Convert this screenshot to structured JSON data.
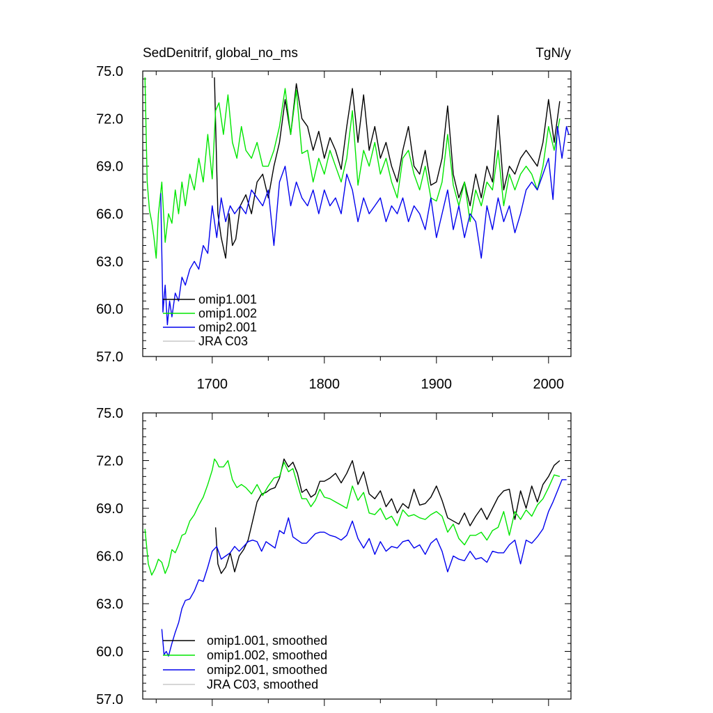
{
  "chart_data": [
    {
      "type": "line",
      "title_left": "SedDenitrif, global_no_ms",
      "title_right": "TgN/y",
      "xlim": [
        1638,
        2020
      ],
      "ylim": [
        57.0,
        75.0
      ],
      "xticks": [
        1700,
        1800,
        1900,
        2000
      ],
      "yticks": [
        "57.0",
        "60.0",
        "63.0",
        "66.0",
        "69.0",
        "72.0",
        "75.0"
      ],
      "show_xtick_labels": true,
      "legend_placement": "bottom-left",
      "series": [
        {
          "name": "omip1.001",
          "color": "#000000",
          "x": [
            1702,
            1705,
            1708,
            1712,
            1715,
            1718,
            1721,
            1725,
            1730,
            1735,
            1740,
            1745,
            1750,
            1755,
            1760,
            1765,
            1770,
            1775,
            1780,
            1785,
            1790,
            1795,
            1800,
            1805,
            1810,
            1815,
            1820,
            1825,
            1830,
            1835,
            1840,
            1845,
            1850,
            1855,
            1860,
            1865,
            1870,
            1875,
            1880,
            1885,
            1890,
            1895,
            1900,
            1905,
            1910,
            1915,
            1920,
            1925,
            1930,
            1935,
            1940,
            1945,
            1950,
            1955,
            1960,
            1965,
            1970,
            1975,
            1980,
            1985,
            1990,
            1995,
            2000,
            2005,
            2010
          ],
          "y": [
            74.6,
            66.0,
            64.5,
            63.2,
            66.0,
            64.0,
            64.4,
            66.5,
            67.2,
            66.0,
            68.0,
            68.5,
            67.0,
            69.0,
            70.5,
            73.2,
            71.0,
            74.2,
            72.0,
            71.5,
            70.0,
            71.2,
            69.5,
            70.8,
            70.0,
            68.8,
            71.5,
            73.9,
            70.5,
            73.5,
            70.0,
            71.5,
            69.5,
            70.5,
            69.0,
            68.0,
            70.0,
            71.5,
            69.0,
            68.5,
            70.0,
            67.8,
            68.0,
            69.5,
            72.8,
            68.5,
            67.0,
            68.0,
            66.5,
            68.5,
            67.0,
            69.0,
            68.0,
            72.2,
            67.5,
            69.0,
            68.5,
            69.5,
            70.0,
            69.5,
            69.0,
            70.5,
            73.2,
            70.5,
            73.1
          ]
        },
        {
          "name": "omip1.002",
          "color": "#00e600",
          "x": [
            1640,
            1642,
            1644,
            1646,
            1648,
            1650,
            1652,
            1655,
            1658,
            1661,
            1664,
            1667,
            1670,
            1673,
            1676,
            1680,
            1684,
            1688,
            1692,
            1696,
            1700,
            1703,
            1706,
            1710,
            1714,
            1718,
            1722,
            1726,
            1730,
            1735,
            1740,
            1745,
            1750,
            1755,
            1760,
            1765,
            1770,
            1775,
            1780,
            1785,
            1790,
            1795,
            1800,
            1805,
            1810,
            1815,
            1820,
            1825,
            1830,
            1835,
            1840,
            1845,
            1850,
            1855,
            1860,
            1865,
            1870,
            1875,
            1880,
            1885,
            1890,
            1895,
            1900,
            1905,
            1910,
            1915,
            1920,
            1925,
            1930,
            1935,
            1940,
            1945,
            1950,
            1955,
            1960,
            1965,
            1970,
            1975,
            1980,
            1985,
            1990,
            1995,
            2000,
            2005,
            2010
          ],
          "y": [
            74.6,
            68.0,
            66.2,
            65.5,
            64.5,
            63.2,
            66.0,
            68.0,
            64.2,
            66.0,
            65.4,
            67.5,
            66.0,
            68.0,
            66.5,
            68.5,
            67.5,
            69.5,
            68.0,
            71.0,
            68.2,
            72.5,
            73.0,
            71.0,
            73.5,
            70.5,
            69.5,
            71.5,
            70.0,
            69.5,
            70.5,
            69.0,
            69.0,
            70.0,
            71.5,
            73.9,
            71.0,
            73.8,
            69.8,
            70.0,
            68.0,
            69.5,
            68.5,
            70.0,
            69.0,
            68.0,
            69.5,
            72.5,
            67.8,
            70.0,
            69.0,
            70.5,
            68.5,
            69.5,
            68.0,
            67.0,
            69.5,
            70.0,
            68.5,
            67.5,
            69.0,
            67.0,
            66.8,
            68.0,
            71.0,
            67.8,
            66.5,
            68.0,
            65.5,
            67.5,
            66.5,
            68.0,
            67.5,
            70.0,
            66.5,
            68.5,
            67.5,
            68.5,
            69.0,
            68.5,
            67.5,
            69.0,
            71.5,
            70.0,
            72.0
          ]
        },
        {
          "name": "omip2.001",
          "color": "#0000ee",
          "x": [
            1654,
            1656,
            1658,
            1660,
            1662,
            1664,
            1667,
            1670,
            1673,
            1676,
            1680,
            1684,
            1688,
            1692,
            1696,
            1700,
            1704,
            1708,
            1712,
            1716,
            1720,
            1725,
            1730,
            1735,
            1740,
            1745,
            1750,
            1755,
            1760,
            1765,
            1770,
            1775,
            1780,
            1785,
            1790,
            1795,
            1800,
            1805,
            1810,
            1815,
            1820,
            1825,
            1830,
            1835,
            1840,
            1845,
            1850,
            1855,
            1860,
            1865,
            1870,
            1875,
            1880,
            1885,
            1890,
            1895,
            1900,
            1905,
            1910,
            1915,
            1920,
            1925,
            1930,
            1935,
            1940,
            1945,
            1950,
            1955,
            1960,
            1965,
            1970,
            1975,
            1980,
            1985,
            1990,
            1995,
            2000,
            2004,
            2008,
            2012,
            2016,
            2018
          ],
          "y": [
            67.3,
            59.8,
            61.5,
            59.0,
            60.5,
            59.5,
            61.0,
            60.5,
            62.0,
            61.5,
            62.5,
            63.0,
            62.5,
            64.0,
            63.5,
            66.5,
            64.5,
            67.0,
            65.5,
            66.5,
            66.0,
            66.5,
            66.0,
            67.5,
            67.0,
            66.5,
            67.5,
            64.0,
            68.0,
            69.0,
            66.5,
            68.0,
            67.0,
            66.5,
            67.5,
            66.0,
            67.5,
            66.5,
            67.0,
            66.0,
            68.5,
            67.5,
            65.5,
            67.0,
            66.0,
            66.5,
            67.0,
            65.5,
            66.5,
            66.0,
            67.0,
            65.5,
            66.5,
            66.0,
            65.0,
            67.0,
            64.5,
            66.0,
            67.5,
            65.0,
            66.5,
            64.5,
            66.0,
            65.5,
            63.2,
            66.5,
            65.0,
            67.0,
            65.5,
            66.5,
            64.8,
            66.0,
            67.5,
            68.0,
            67.5,
            68.5,
            69.5,
            66.9,
            71.5,
            69.5,
            71.5,
            71.0
          ]
        },
        {
          "name": "JRA C03",
          "color": "#c8c8c8",
          "x": [],
          "y": []
        }
      ]
    },
    {
      "type": "line",
      "title_left": "",
      "title_right": "",
      "xlim": [
        1638,
        2020
      ],
      "ylim": [
        57.0,
        75.0
      ],
      "xticks": [
        1700,
        1800,
        1900,
        2000
      ],
      "yticks": [
        "57.0",
        "60.0",
        "63.0",
        "66.0",
        "69.0",
        "72.0",
        "75.0"
      ],
      "show_xtick_labels": false,
      "legend_placement": "bottom-left",
      "series": [
        {
          "name": "omip1.001, smoothed",
          "color": "#000000",
          "x": [
            1703,
            1705,
            1708,
            1712,
            1716,
            1720,
            1724,
            1728,
            1732,
            1736,
            1740,
            1744,
            1748,
            1752,
            1756,
            1760,
            1764,
            1768,
            1772,
            1776,
            1780,
            1784,
            1788,
            1792,
            1796,
            1800,
            1805,
            1810,
            1815,
            1820,
            1825,
            1830,
            1835,
            1840,
            1845,
            1850,
            1855,
            1860,
            1865,
            1870,
            1875,
            1880,
            1885,
            1890,
            1895,
            1900,
            1905,
            1910,
            1915,
            1920,
            1925,
            1930,
            1935,
            1940,
            1945,
            1950,
            1955,
            1960,
            1965,
            1970,
            1975,
            1980,
            1985,
            1990,
            1995,
            2000,
            2005,
            2010
          ],
          "y": [
            67.8,
            65.5,
            64.9,
            65.3,
            66.2,
            65.0,
            66.0,
            66.4,
            67.0,
            68.2,
            69.4,
            69.9,
            70.0,
            70.2,
            70.3,
            70.9,
            72.1,
            71.6,
            71.9,
            71.2,
            70.0,
            70.2,
            69.7,
            69.9,
            70.7,
            70.7,
            70.9,
            71.2,
            70.6,
            71.2,
            72.0,
            70.5,
            71.3,
            69.9,
            69.6,
            70.1,
            69.1,
            69.6,
            68.7,
            69.3,
            69.0,
            70.2,
            69.2,
            69.3,
            69.7,
            70.4,
            69.5,
            68.4,
            68.2,
            68.0,
            68.7,
            67.9,
            68.5,
            69.0,
            68.3,
            69.0,
            69.7,
            70.1,
            70.2,
            68.3,
            70.1,
            69.0,
            70.4,
            69.4,
            70.5,
            71.0,
            71.7,
            72.0
          ]
        },
        {
          "name": "omip1.002, smoothed",
          "color": "#00e600",
          "x": [
            1640,
            1643,
            1646,
            1649,
            1652,
            1655,
            1658,
            1661,
            1664,
            1667,
            1670,
            1673,
            1676,
            1680,
            1684,
            1688,
            1692,
            1696,
            1700,
            1702,
            1704,
            1706,
            1710,
            1714,
            1718,
            1722,
            1726,
            1730,
            1735,
            1740,
            1745,
            1750,
            1755,
            1760,
            1764,
            1768,
            1772,
            1776,
            1780,
            1784,
            1788,
            1792,
            1796,
            1800,
            1805,
            1810,
            1815,
            1820,
            1825,
            1830,
            1835,
            1840,
            1845,
            1850,
            1855,
            1860,
            1865,
            1870,
            1875,
            1880,
            1885,
            1890,
            1895,
            1900,
            1905,
            1910,
            1915,
            1920,
            1925,
            1930,
            1935,
            1940,
            1945,
            1950,
            1955,
            1960,
            1965,
            1970,
            1975,
            1980,
            1985,
            1990,
            1995,
            2000,
            2005,
            2010
          ],
          "y": [
            67.7,
            65.5,
            64.8,
            65.2,
            65.8,
            65.6,
            64.9,
            65.4,
            66.4,
            66.2,
            66.7,
            67.3,
            67.4,
            68.2,
            68.6,
            69.2,
            69.7,
            70.5,
            71.4,
            72.1,
            71.9,
            71.6,
            71.6,
            72.0,
            70.8,
            70.3,
            70.5,
            70.3,
            69.9,
            70.5,
            69.8,
            70.4,
            70.9,
            71.0,
            71.9,
            71.3,
            71.5,
            70.5,
            69.6,
            69.6,
            69.1,
            69.5,
            70.2,
            69.7,
            69.6,
            69.4,
            69.2,
            69.0,
            70.4,
            69.5,
            70.0,
            68.7,
            68.6,
            69.0,
            68.3,
            68.5,
            67.9,
            68.9,
            68.5,
            68.6,
            68.4,
            68.3,
            68.6,
            68.8,
            68.5,
            67.5,
            68.0,
            67.1,
            66.7,
            67.3,
            67.3,
            67.5,
            67.0,
            67.6,
            67.8,
            68.8,
            67.3,
            68.8,
            68.3,
            68.9,
            68.5,
            69.2,
            69.6,
            70.3,
            71.1,
            71.0
          ]
        },
        {
          "name": "omip2.001, smoothed",
          "color": "#0000ee",
          "x": [
            1655,
            1657,
            1659,
            1661,
            1664,
            1667,
            1670,
            1673,
            1676,
            1680,
            1684,
            1688,
            1692,
            1696,
            1700,
            1704,
            1708,
            1712,
            1716,
            1720,
            1724,
            1728,
            1732,
            1736,
            1740,
            1744,
            1748,
            1752,
            1756,
            1760,
            1764,
            1768,
            1772,
            1776,
            1780,
            1784,
            1788,
            1792,
            1796,
            1800,
            1805,
            1810,
            1815,
            1820,
            1825,
            1830,
            1835,
            1840,
            1845,
            1850,
            1855,
            1860,
            1865,
            1870,
            1875,
            1880,
            1885,
            1890,
            1895,
            1900,
            1905,
            1910,
            1915,
            1920,
            1925,
            1930,
            1935,
            1940,
            1945,
            1950,
            1955,
            1960,
            1965,
            1970,
            1975,
            1980,
            1985,
            1990,
            1995,
            2000,
            2004,
            2008,
            2012,
            2016
          ],
          "y": [
            61.4,
            59.8,
            60.0,
            59.7,
            60.5,
            61.2,
            61.8,
            62.7,
            63.2,
            63.3,
            63.8,
            64.5,
            64.4,
            65.3,
            66.3,
            66.6,
            65.8,
            66.0,
            66.2,
            66.6,
            66.3,
            66.6,
            66.9,
            67.0,
            66.9,
            66.3,
            66.9,
            66.7,
            66.5,
            67.6,
            67.4,
            68.4,
            67.2,
            67.0,
            66.8,
            66.8,
            67.1,
            67.4,
            67.5,
            67.5,
            67.3,
            67.2,
            67.0,
            67.3,
            68.2,
            67.1,
            66.5,
            67.1,
            66.1,
            66.9,
            66.3,
            66.6,
            66.5,
            66.9,
            67.0,
            66.5,
            66.7,
            66.1,
            66.8,
            67.1,
            66.3,
            65.0,
            66.0,
            65.8,
            65.7,
            66.3,
            65.8,
            65.9,
            65.6,
            66.3,
            66.2,
            66.2,
            66.7,
            67.0,
            65.5,
            67.0,
            66.8,
            67.2,
            67.7,
            68.8,
            69.4,
            70.1,
            70.8,
            70.8
          ]
        },
        {
          "name": "JRA C03, smoothed",
          "color": "#c8c8c8",
          "x": [],
          "y": []
        }
      ]
    }
  ]
}
